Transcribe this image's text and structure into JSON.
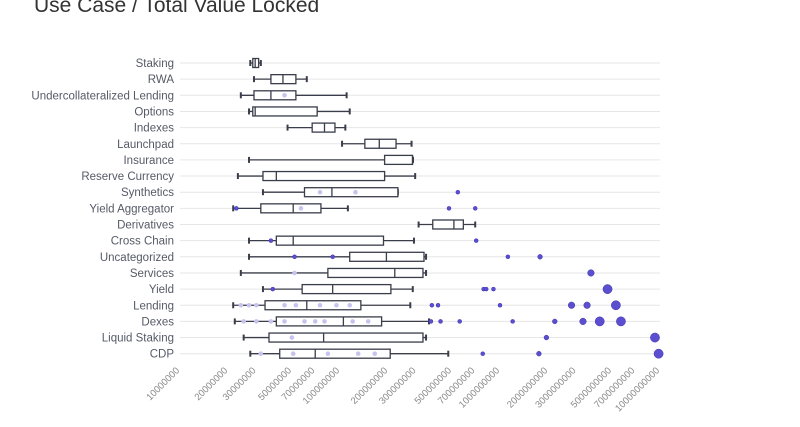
{
  "chart_data": {
    "type": "box",
    "title": "Use Case / Total Value Locked",
    "xscale": "log",
    "xlim": [
      10000000,
      10000000000
    ],
    "x_ticks": [
      10000000,
      20000000,
      30000000,
      50000000,
      70000000,
      100000000,
      200000000,
      300000000,
      500000000,
      700000000,
      1000000000,
      2000000000,
      3000000000,
      5000000000,
      7000000000,
      10000000000
    ],
    "x_tick_labels": [
      "10000000",
      "20000000",
      "30000000",
      "50000000",
      "70000000",
      "100000000",
      "200000000",
      "300000000",
      "500000000",
      "700000000",
      "1000000000",
      "2000000000",
      "3000000000",
      "5000000000",
      "7000000000",
      "10000000000"
    ],
    "colors": {
      "box_stroke": "#3a3d4a",
      "point": "#5b4fd0",
      "point_light": "#c7c3ee",
      "grid": "#e6e6e6",
      "text": "#555a66"
    },
    "series": [
      {
        "name": "Staking",
        "min": 27500000,
        "q1": 28500000,
        "median": 29500000,
        "q3": 31000000,
        "max": 32000000,
        "points": [],
        "outliers": []
      },
      {
        "name": "RWA",
        "min": 29000000,
        "q1": 37000000,
        "median": 44000000,
        "q3": 53000000,
        "max": 62000000,
        "points": [],
        "outliers": []
      },
      {
        "name": "Undercollateralized Lending",
        "min": 24000000,
        "q1": 29000000,
        "median": 37000000,
        "q3": 53000000,
        "max": 110000000,
        "points": [
          45000000
        ],
        "outliers": []
      },
      {
        "name": "Options",
        "min": 27000000,
        "q1": 28500000,
        "median": 29500000,
        "q3": 72000000,
        "max": 115000000,
        "points": [],
        "outliers": []
      },
      {
        "name": "Indexes",
        "min": 47000000,
        "q1": 67000000,
        "median": 80000000,
        "q3": 93000000,
        "max": 108000000,
        "points": [],
        "outliers": []
      },
      {
        "name": "Launchpad",
        "min": 103000000,
        "q1": 143000000,
        "median": 176000000,
        "q3": 224000000,
        "max": 280000000,
        "points": [],
        "outliers": []
      },
      {
        "name": "Insurance",
        "min": 27000000,
        "q1": 190000000,
        "median": 284000000,
        "q3": 284000000,
        "max": 286000000,
        "points": [],
        "outliers": []
      },
      {
        "name": "Reserve Currency",
        "min": 23000000,
        "q1": 33000000,
        "median": 40000000,
        "q3": 190000000,
        "max": 295000000,
        "points": [],
        "outliers": []
      },
      {
        "name": "Synthetics",
        "min": 33000000,
        "q1": 60000000,
        "median": 89000000,
        "q3": 230000000,
        "max": 230000000,
        "points": [
          75000000,
          125000000
        ],
        "outliers": [
          545000000
        ]
      },
      {
        "name": "Yield Aggregator",
        "min": 21500000,
        "q1": 32000000,
        "median": 51000000,
        "q3": 76000000,
        "max": 112000000,
        "points": [
          57000000
        ],
        "outliers": [
          22500000,
          480000000,
          700000000
        ]
      },
      {
        "name": "Derivatives",
        "min": 310000000,
        "q1": 380000000,
        "median": 515000000,
        "q3": 590000000,
        "max": 700000000,
        "points": [],
        "outliers": []
      },
      {
        "name": "Cross Chain",
        "min": 27000000,
        "q1": 40000000,
        "median": 51000000,
        "q3": 187000000,
        "max": 290000000,
        "points": [],
        "outliers": [
          37000000,
          710000000
        ]
      },
      {
        "name": "Uncategorized",
        "min": 27000000,
        "q1": 115000000,
        "median": 195000000,
        "q3": 335000000,
        "max": 345000000,
        "points": [],
        "outliers": [
          52000000,
          90000000,
          1120000000,
          1780000000
        ]
      },
      {
        "name": "Services",
        "min": 24000000,
        "q1": 84000000,
        "median": 220000000,
        "q3": 330000000,
        "max": 345000000,
        "points": [
          52000000
        ],
        "outliers": [
          3700000000
        ]
      },
      {
        "name": "Yield",
        "min": 33000000,
        "q1": 58000000,
        "median": 90000000,
        "q3": 208000000,
        "max": 285000000,
        "points": [],
        "outliers": [
          38000000,
          790000000,
          820000000,
          910000000,
          4700000000
        ]
      },
      {
        "name": "Lending",
        "min": 21500000,
        "q1": 34000000,
        "median": 62000000,
        "q3": 135000000,
        "max": 275000000,
        "points": [
          24000000,
          27000000,
          30000000,
          45000000,
          53000000,
          75000000,
          95000000,
          115000000
        ],
        "outliers": [
          375000000,
          410000000,
          1000000000,
          2800000000,
          3500000000,
          5300000000
        ]
      },
      {
        "name": "Dexes",
        "min": 22000000,
        "q1": 40000000,
        "median": 105000000,
        "q3": 182000000,
        "max": 360000000,
        "points": [
          25000000,
          30000000,
          37000000,
          45000000,
          60000000,
          70000000,
          80000000,
          120000000,
          150000000
        ],
        "outliers": [
          370000000,
          425000000,
          560000000,
          1200000000,
          2200000000,
          3300000000,
          4200000000,
          5700000000
        ]
      },
      {
        "name": "Liquid Staking",
        "min": 25000000,
        "q1": 36000000,
        "median": 79000000,
        "q3": 330000000,
        "max": 345000000,
        "points": [
          50000000
        ],
        "outliers": [
          1950000000,
          9300000000
        ]
      },
      {
        "name": "CDP",
        "min": 27500000,
        "q1": 42000000,
        "median": 70000000,
        "q3": 206000000,
        "max": 475000000,
        "points": [
          32000000,
          51000000,
          84000000,
          130000000,
          165000000
        ],
        "outliers": [
          780000000,
          1750000000,
          9800000000
        ]
      }
    ]
  }
}
